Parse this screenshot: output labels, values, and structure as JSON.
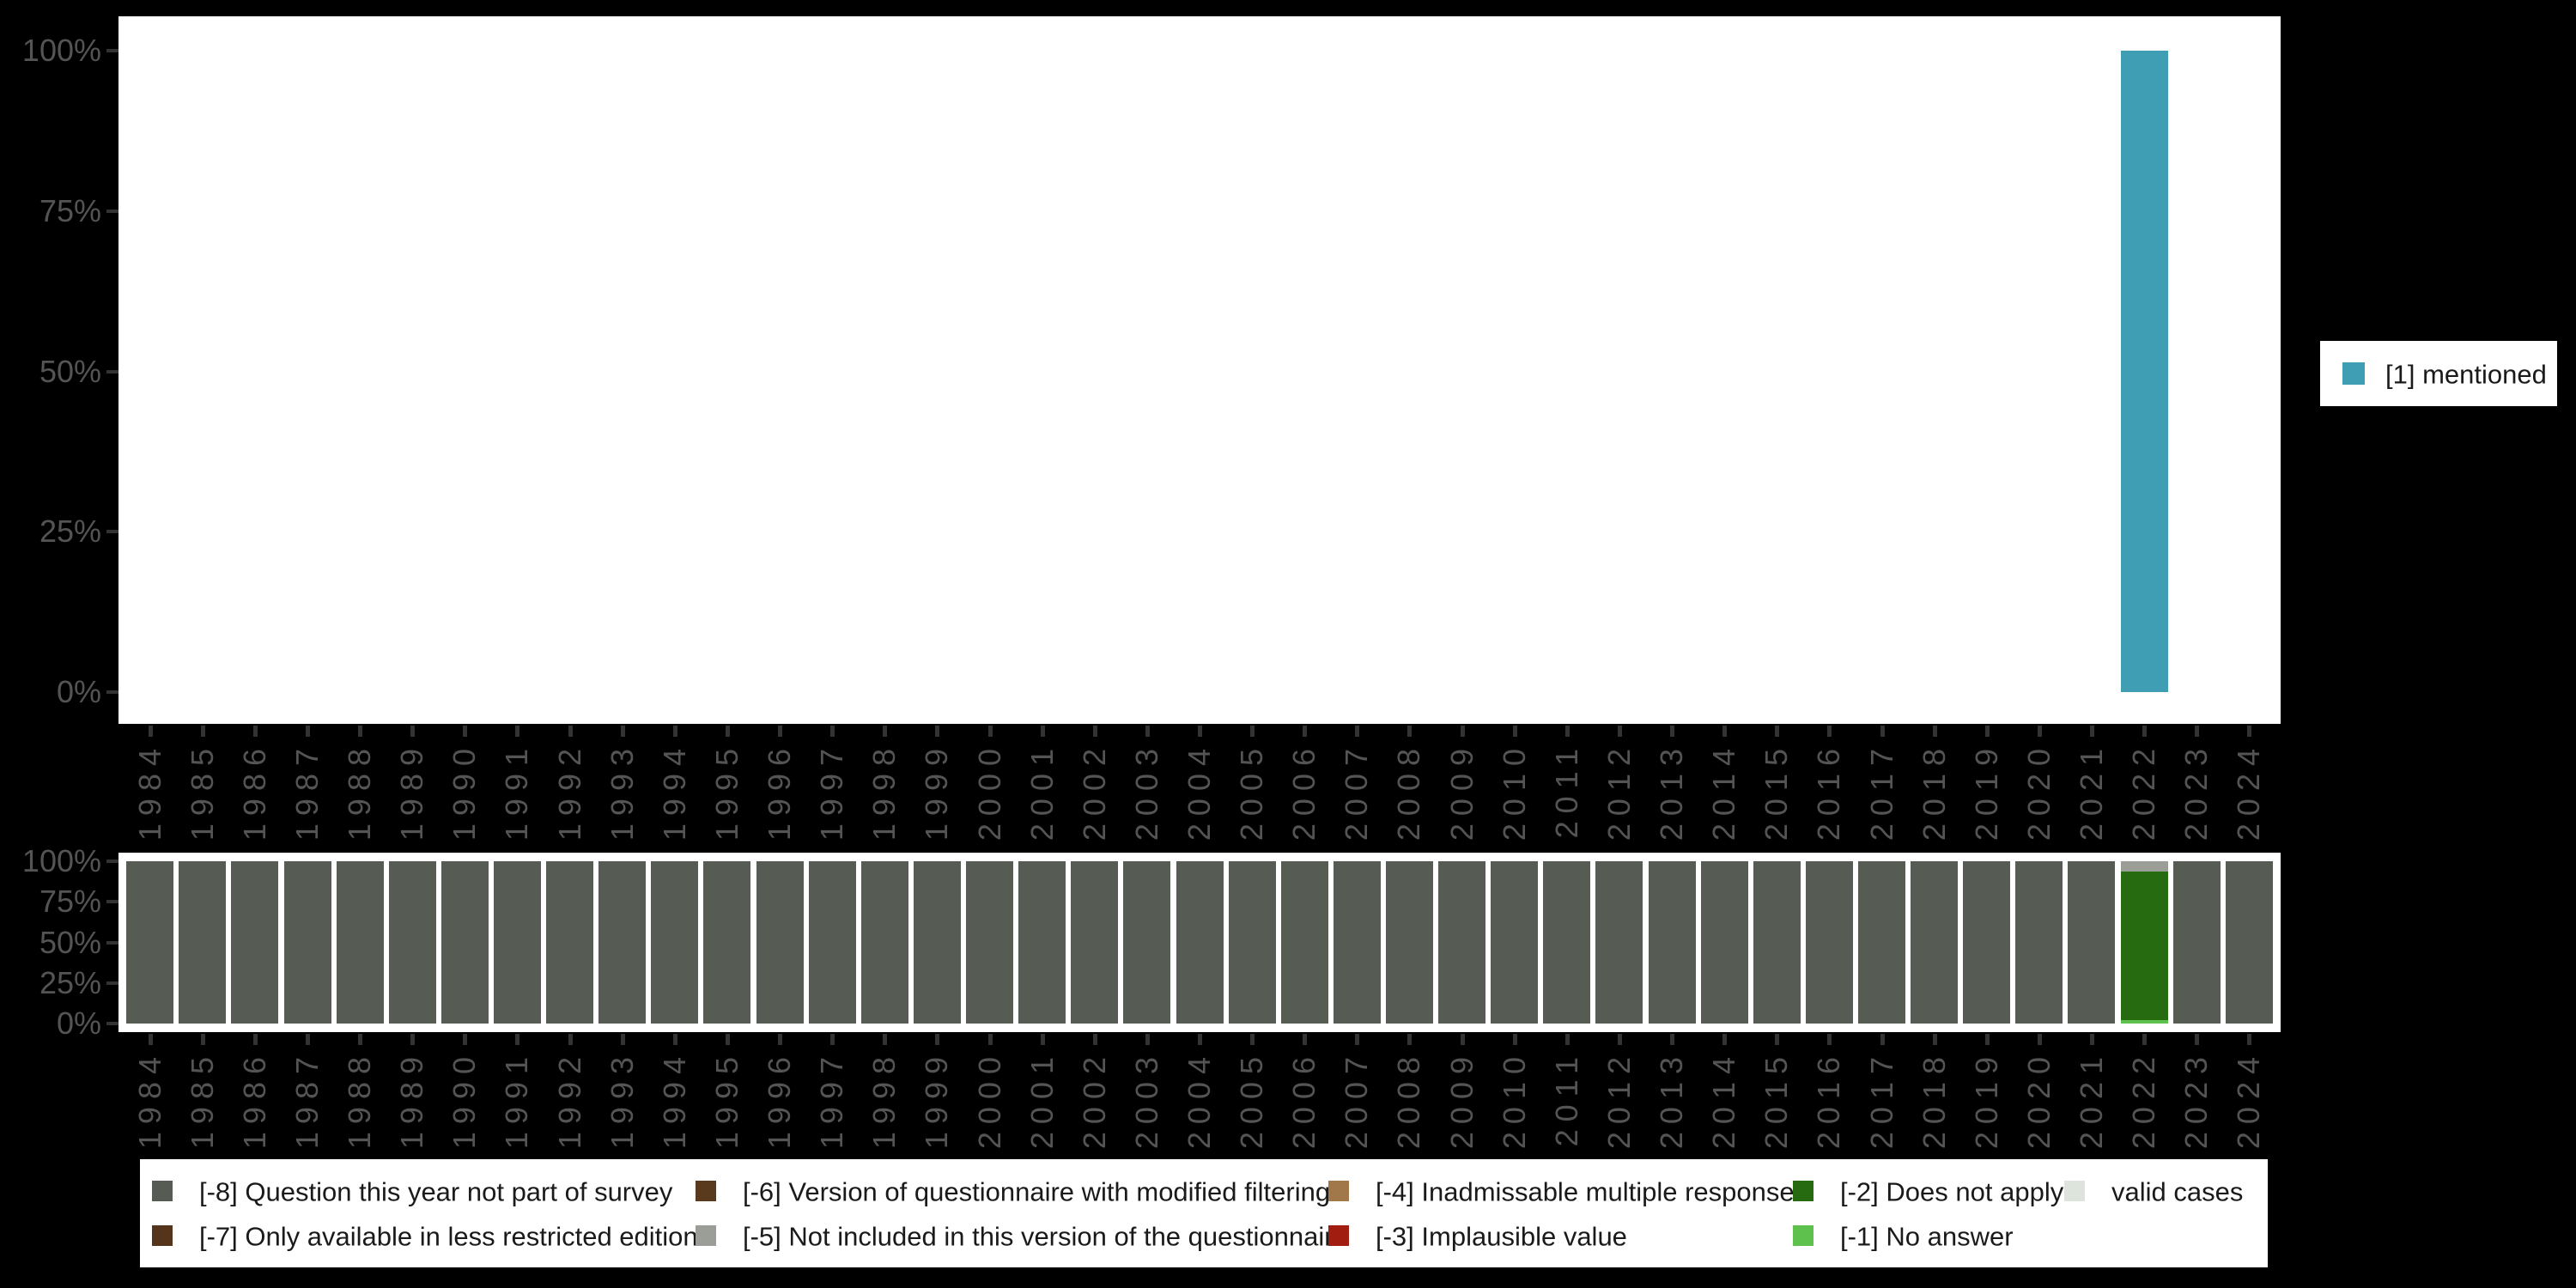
{
  "colors": {
    "background": "#000000",
    "panel": "#ffffff",
    "axis_text": "#545454",
    "tick": "#333333",
    "legend_text": "#1a1a1a",
    "mentioned": "#3f9db4",
    "m8": "#565c54",
    "m7": "#54351b",
    "m6": "#5a3a1d",
    "m5": "#9a9e97",
    "m4": "#a0784a",
    "m3": "#a01d10",
    "m2": "#266b10",
    "m1": "#5ec14e",
    "valid": "#dfe3dd"
  },
  "x_years": [
    "1984",
    "1985",
    "1986",
    "1987",
    "1988",
    "1989",
    "1990",
    "1991",
    "1992",
    "1993",
    "1994",
    "1995",
    "1996",
    "1997",
    "1998",
    "1999",
    "2000",
    "2001",
    "2002",
    "2003",
    "2004",
    "2005",
    "2006",
    "2007",
    "2008",
    "2009",
    "2010",
    "2011",
    "2012",
    "2013",
    "2014",
    "2015",
    "2016",
    "2017",
    "2018",
    "2019",
    "2020",
    "2021",
    "2022",
    "2023",
    "2024"
  ],
  "y_axis_ticks": [
    {
      "value": 0,
      "label": "0%"
    },
    {
      "value": 25,
      "label": "25%"
    },
    {
      "value": 50,
      "label": "50%"
    },
    {
      "value": 75,
      "label": "75%"
    },
    {
      "value": 100,
      "label": "100%"
    }
  ],
  "chart_data": [
    {
      "name": "valid-values-over-time",
      "type": "bar",
      "stacked": true,
      "unit": "percent of valid cases",
      "x": [
        "1984",
        "1985",
        "1986",
        "1987",
        "1988",
        "1989",
        "1990",
        "1991",
        "1992",
        "1993",
        "1994",
        "1995",
        "1996",
        "1997",
        "1998",
        "1999",
        "2000",
        "2001",
        "2002",
        "2003",
        "2004",
        "2005",
        "2006",
        "2007",
        "2008",
        "2009",
        "2010",
        "2011",
        "2012",
        "2013",
        "2014",
        "2015",
        "2016",
        "2017",
        "2018",
        "2019",
        "2020",
        "2021",
        "2022",
        "2023",
        "2024"
      ],
      "ylim": [
        0,
        100
      ],
      "yticks": [
        0,
        25,
        50,
        75,
        100
      ],
      "grid": false,
      "legend_position": "right",
      "series": [
        {
          "name": "[1] mentioned",
          "color_key": "mentioned",
          "values": [
            0,
            0,
            0,
            0,
            0,
            0,
            0,
            0,
            0,
            0,
            0,
            0,
            0,
            0,
            0,
            0,
            0,
            0,
            0,
            0,
            0,
            0,
            0,
            0,
            0,
            0,
            0,
            0,
            0,
            0,
            0,
            0,
            0,
            0,
            0,
            0,
            0,
            0,
            100,
            0,
            0
          ]
        }
      ]
    },
    {
      "name": "missing-values-over-time",
      "type": "bar",
      "stacked": true,
      "unit": "percent of all cases",
      "x": [
        "1984",
        "1985",
        "1986",
        "1987",
        "1988",
        "1989",
        "1990",
        "1991",
        "1992",
        "1993",
        "1994",
        "1995",
        "1996",
        "1997",
        "1998",
        "1999",
        "2000",
        "2001",
        "2002",
        "2003",
        "2004",
        "2005",
        "2006",
        "2007",
        "2008",
        "2009",
        "2010",
        "2011",
        "2012",
        "2013",
        "2014",
        "2015",
        "2016",
        "2017",
        "2018",
        "2019",
        "2020",
        "2021",
        "2022",
        "2023",
        "2024"
      ],
      "ylim": [
        0,
        100
      ],
      "yticks": [
        0,
        25,
        50,
        75,
        100
      ],
      "grid": false,
      "legend_position": "bottom",
      "series": [
        {
          "name": "[-8] Question this year not part of survey",
          "color_key": "m8",
          "values": [
            100,
            100,
            100,
            100,
            100,
            100,
            100,
            100,
            100,
            100,
            100,
            100,
            100,
            100,
            100,
            100,
            100,
            100,
            100,
            100,
            100,
            100,
            100,
            100,
            100,
            100,
            100,
            100,
            100,
            100,
            100,
            100,
            100,
            100,
            100,
            100,
            100,
            100,
            0,
            100,
            100
          ]
        },
        {
          "name": "[-1] No answer",
          "color_key": "m1",
          "values": [
            0,
            0,
            0,
            0,
            0,
            0,
            0,
            0,
            0,
            0,
            0,
            0,
            0,
            0,
            0,
            0,
            0,
            0,
            0,
            0,
            0,
            0,
            0,
            0,
            0,
            0,
            0,
            0,
            0,
            0,
            0,
            0,
            0,
            0,
            0,
            0,
            0,
            0,
            2,
            0,
            0
          ]
        },
        {
          "name": "[-2] Does not apply",
          "color_key": "m2",
          "values": [
            0,
            0,
            0,
            0,
            0,
            0,
            0,
            0,
            0,
            0,
            0,
            0,
            0,
            0,
            0,
            0,
            0,
            0,
            0,
            0,
            0,
            0,
            0,
            0,
            0,
            0,
            0,
            0,
            0,
            0,
            0,
            0,
            0,
            0,
            0,
            0,
            0,
            0,
            91.5,
            0,
            0
          ]
        },
        {
          "name": "[-5] Not included in this version of the questionnaire",
          "color_key": "m5",
          "values": [
            0,
            0,
            0,
            0,
            0,
            0,
            0,
            0,
            0,
            0,
            0,
            0,
            0,
            0,
            0,
            0,
            0,
            0,
            0,
            0,
            0,
            0,
            0,
            0,
            0,
            0,
            0,
            0,
            0,
            0,
            0,
            0,
            0,
            0,
            0,
            0,
            0,
            0,
            6.5,
            0,
            0
          ]
        }
      ]
    }
  ],
  "legend_right": {
    "items": [
      {
        "label": "[1] mentioned",
        "color_key": "mentioned"
      }
    ]
  },
  "legend_bottom": {
    "items": [
      {
        "label": "[-8] Question this year not part of survey",
        "color_key": "m8",
        "col": 0,
        "row": 0
      },
      {
        "label": "[-7] Only available in less restricted edition",
        "color_key": "m7",
        "col": 0,
        "row": 1
      },
      {
        "label": "[-6] Version of questionnaire with modified filtering",
        "color_key": "m6",
        "col": 1,
        "row": 0
      },
      {
        "label": "[-5] Not included in this version of the questionnaire",
        "color_key": "m5",
        "col": 1,
        "row": 1
      },
      {
        "label": "[-4] Inadmissable multiple response",
        "color_key": "m4",
        "col": 2,
        "row": 0
      },
      {
        "label": "[-3] Implausible value",
        "color_key": "m3",
        "col": 2,
        "row": 1
      },
      {
        "label": "[-2] Does not apply",
        "color_key": "m2",
        "col": 3,
        "row": 0
      },
      {
        "label": "[-1] No answer",
        "color_key": "m1",
        "col": 3,
        "row": 1
      },
      {
        "label": "valid cases",
        "color_key": "valid",
        "col": 4,
        "row": 0
      }
    ]
  }
}
